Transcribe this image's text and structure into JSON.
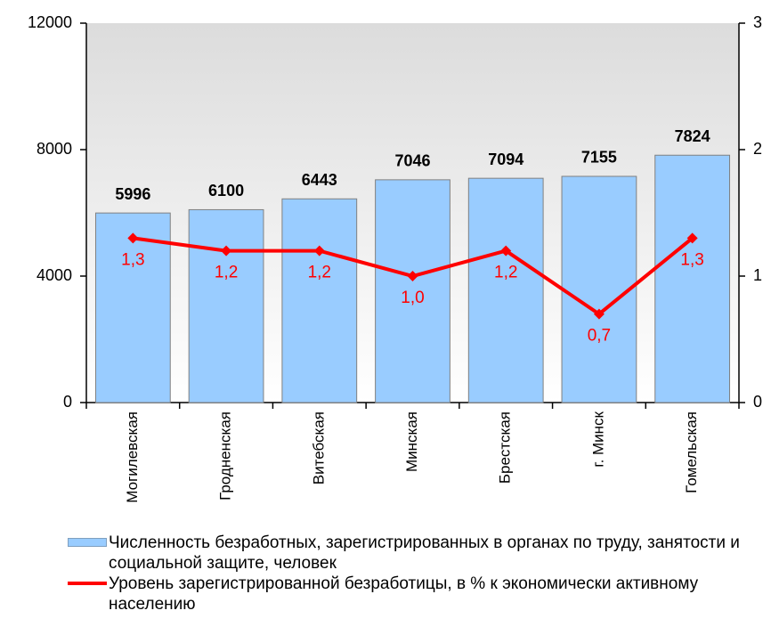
{
  "chart_data": {
    "type": "combo",
    "categories": [
      "Могилевская",
      "Гродненская",
      "Витебская",
      "Минская",
      "Брестская",
      "г. Минск",
      "Гомельская"
    ],
    "series": [
      {
        "name": "Численность безработных, зарегистрированных в органах по труду, занятости и социальной защите, человек",
        "type": "bar",
        "color": "#99ccff",
        "values": [
          5996,
          6100,
          6443,
          7046,
          7094,
          7155,
          7824
        ]
      },
      {
        "name": "Уровень зарегистрированной безработицы, в % к экономически активному населению",
        "type": "line",
        "axis": "y2",
        "color": "#ff0000",
        "values": [
          1.3,
          1.2,
          1.2,
          1.0,
          1.2,
          0.7,
          1.3
        ],
        "value_labels": [
          "1,3",
          "1,2",
          "1,2",
          "1,0",
          "1,2",
          "0,7",
          "1,3"
        ]
      }
    ],
    "ylim": [
      0,
      12000
    ],
    "yticks": [
      0,
      4000,
      8000,
      12000
    ],
    "y2lim": [
      0,
      3
    ],
    "y2ticks": [
      0,
      1,
      2,
      3
    ]
  }
}
